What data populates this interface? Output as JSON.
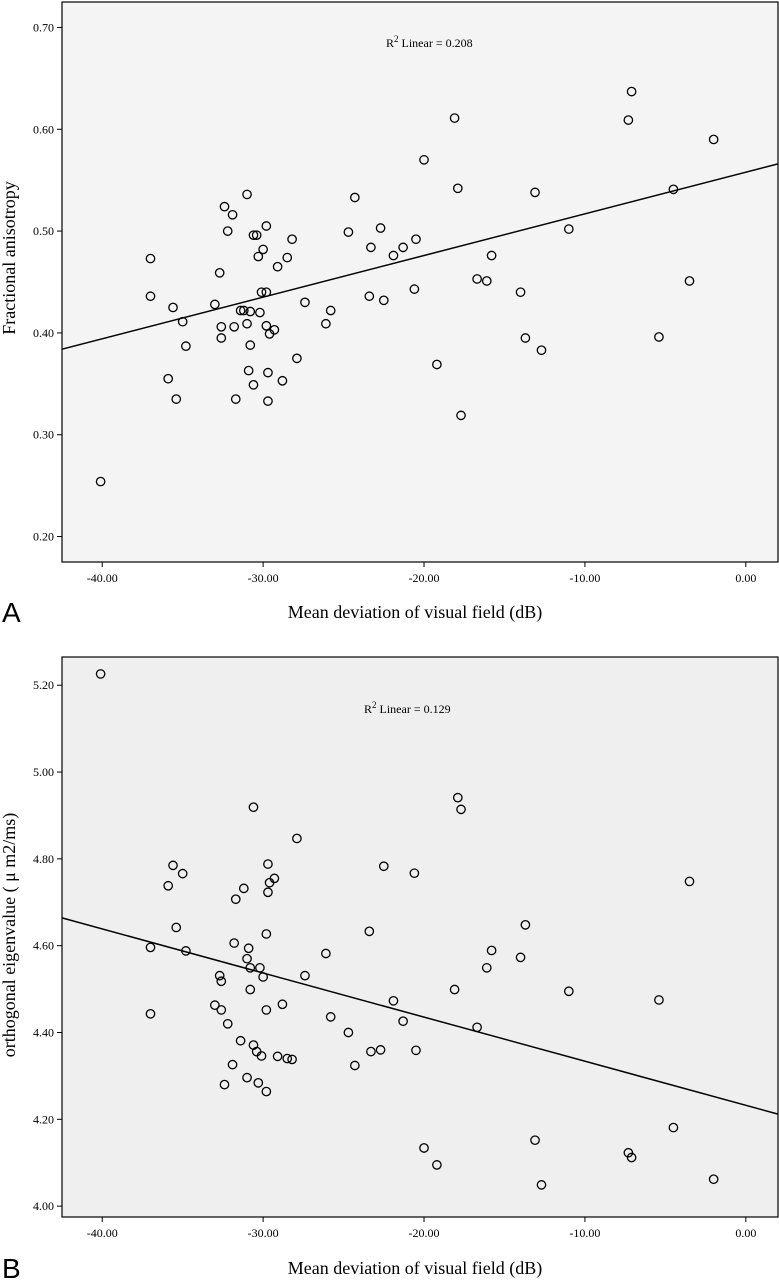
{
  "chart_data": [
    {
      "type": "scatter",
      "panel_label": "A",
      "xlabel": "Mean deviation of visual field (dB)",
      "ylabel": "Fractional anisotropy",
      "xlim": [
        -42.5,
        2.0
      ],
      "ylim": [
        0.175,
        0.725
      ],
      "x_ticks": [
        "-40.00",
        "-30.00",
        "-20.00",
        "-10.00",
        "0.00"
      ],
      "y_ticks": [
        "0.20",
        "0.30",
        "0.40",
        "0.50",
        "0.60",
        "0.70"
      ],
      "annotation_prefix": "R",
      "annotation_sup": "2",
      "annotation": " Linear = 0.208",
      "fit_line": {
        "x": [
          -42.5,
          2.0
        ],
        "y": [
          0.384,
          0.566
        ]
      },
      "background": "#f4f4f4",
      "points": [
        [
          -40.1,
          0.254
        ],
        [
          -37.0,
          0.473
        ],
        [
          -37.0,
          0.436
        ],
        [
          -35.9,
          0.355
        ],
        [
          -35.6,
          0.425
        ],
        [
          -35.4,
          0.335
        ],
        [
          -35.0,
          0.411
        ],
        [
          -34.8,
          0.387
        ],
        [
          -33.0,
          0.428
        ],
        [
          -32.7,
          0.459
        ],
        [
          -32.6,
          0.406
        ],
        [
          -32.6,
          0.395
        ],
        [
          -32.4,
          0.524
        ],
        [
          -32.2,
          0.5
        ],
        [
          -31.9,
          0.516
        ],
        [
          -31.8,
          0.406
        ],
        [
          -31.7,
          0.335
        ],
        [
          -31.4,
          0.422
        ],
        [
          -31.2,
          0.422
        ],
        [
          -31.0,
          0.536
        ],
        [
          -31.0,
          0.409
        ],
        [
          -30.9,
          0.363
        ],
        [
          -30.8,
          0.421
        ],
        [
          -30.8,
          0.388
        ],
        [
          -30.6,
          0.349
        ],
        [
          -30.6,
          0.496
        ],
        [
          -30.4,
          0.496
        ],
        [
          -30.3,
          0.475
        ],
        [
          -30.2,
          0.42
        ],
        [
          -30.1,
          0.44
        ],
        [
          -30.0,
          0.482
        ],
        [
          -29.8,
          0.505
        ],
        [
          -29.8,
          0.44
        ],
        [
          -29.8,
          0.407
        ],
        [
          -29.7,
          0.361
        ],
        [
          -29.7,
          0.333
        ],
        [
          -29.6,
          0.399
        ],
        [
          -29.3,
          0.403
        ],
        [
          -29.1,
          0.465
        ],
        [
          -28.8,
          0.353
        ],
        [
          -28.5,
          0.474
        ],
        [
          -28.2,
          0.492
        ],
        [
          -27.9,
          0.375
        ],
        [
          -27.4,
          0.43
        ],
        [
          -26.1,
          0.409
        ],
        [
          -25.8,
          0.422
        ],
        [
          -24.7,
          0.499
        ],
        [
          -24.3,
          0.533
        ],
        [
          -23.4,
          0.436
        ],
        [
          -23.3,
          0.484
        ],
        [
          -22.7,
          0.503
        ],
        [
          -22.5,
          0.432
        ],
        [
          -21.9,
          0.476
        ],
        [
          -21.3,
          0.484
        ],
        [
          -20.6,
          0.443
        ],
        [
          -20.5,
          0.492
        ],
        [
          -20.0,
          0.57
        ],
        [
          -19.2,
          0.369
        ],
        [
          -18.1,
          0.611
        ],
        [
          -17.9,
          0.542
        ],
        [
          -17.7,
          0.319
        ],
        [
          -16.7,
          0.453
        ],
        [
          -16.1,
          0.451
        ],
        [
          -15.8,
          0.476
        ],
        [
          -14.0,
          0.44
        ],
        [
          -13.7,
          0.395
        ],
        [
          -13.1,
          0.538
        ],
        [
          -12.7,
          0.383
        ],
        [
          -11.0,
          0.502
        ],
        [
          -7.3,
          0.609
        ],
        [
          -7.1,
          0.637
        ],
        [
          -5.4,
          0.396
        ],
        [
          -4.5,
          0.541
        ],
        [
          -3.5,
          0.451
        ],
        [
          -2.0,
          0.59
        ]
      ]
    },
    {
      "type": "scatter",
      "panel_label": "B",
      "xlabel": "Mean deviation of visual field (dB)",
      "ylabel": "orthogonal eigenvalue ( μ m2/ms)",
      "xlim": [
        -42.5,
        2.0
      ],
      "ylim": [
        3.975,
        5.265
      ],
      "x_ticks": [
        "-40.00",
        "-30.00",
        "-20.00",
        "-10.00",
        "0.00"
      ],
      "y_ticks": [
        "4.00",
        "4.20",
        "4.40",
        "4.60",
        "4.80",
        "5.00",
        "5.20"
      ],
      "annotation_prefix": "R",
      "annotation_sup": "2",
      "annotation": " Linear = 0.129",
      "fit_line": {
        "x": [
          -42.5,
          2.0
        ],
        "y": [
          4.664,
          4.212
        ]
      },
      "background": "#efefef",
      "points": [
        [
          -40.1,
          5.226
        ],
        [
          -37.0,
          4.596
        ],
        [
          -37.0,
          4.443
        ],
        [
          -35.9,
          4.738
        ],
        [
          -35.6,
          4.785
        ],
        [
          -35.4,
          4.642
        ],
        [
          -35.0,
          4.766
        ],
        [
          -34.8,
          4.588
        ],
        [
          -33.0,
          4.463
        ],
        [
          -32.7,
          4.531
        ],
        [
          -32.6,
          4.518
        ],
        [
          -32.6,
          4.452
        ],
        [
          -32.4,
          4.28
        ],
        [
          -32.2,
          4.42
        ],
        [
          -31.9,
          4.326
        ],
        [
          -31.8,
          4.606
        ],
        [
          -31.7,
          4.707
        ],
        [
          -31.4,
          4.381
        ],
        [
          -31.2,
          4.732
        ],
        [
          -31.0,
          4.296
        ],
        [
          -31.0,
          4.57
        ],
        [
          -30.9,
          4.594
        ],
        [
          -30.8,
          4.549
        ],
        [
          -30.8,
          4.499
        ],
        [
          -30.6,
          4.919
        ],
        [
          -30.6,
          4.371
        ],
        [
          -30.4,
          4.356
        ],
        [
          -30.3,
          4.284
        ],
        [
          -30.2,
          4.549
        ],
        [
          -30.1,
          4.346
        ],
        [
          -30.0,
          4.528
        ],
        [
          -29.8,
          4.627
        ],
        [
          -29.8,
          4.452
        ],
        [
          -29.8,
          4.264
        ],
        [
          -29.7,
          4.788
        ],
        [
          -29.7,
          4.723
        ],
        [
          -29.6,
          4.745
        ],
        [
          -29.3,
          4.755
        ],
        [
          -29.1,
          4.345
        ],
        [
          -28.8,
          4.465
        ],
        [
          -28.5,
          4.34
        ],
        [
          -28.2,
          4.338
        ],
        [
          -27.9,
          4.847
        ],
        [
          -27.4,
          4.531
        ],
        [
          -26.1,
          4.582
        ],
        [
          -25.8,
          4.436
        ],
        [
          -24.7,
          4.4
        ],
        [
          -24.3,
          4.324
        ],
        [
          -23.4,
          4.633
        ],
        [
          -23.3,
          4.356
        ],
        [
          -22.7,
          4.36
        ],
        [
          -22.5,
          4.783
        ],
        [
          -21.9,
          4.473
        ],
        [
          -21.3,
          4.426
        ],
        [
          -20.6,
          4.767
        ],
        [
          -20.5,
          4.359
        ],
        [
          -20.0,
          4.134
        ],
        [
          -19.2,
          4.095
        ],
        [
          -18.1,
          4.499
        ],
        [
          -17.9,
          4.941
        ],
        [
          -17.7,
          4.914
        ],
        [
          -16.7,
          4.412
        ],
        [
          -16.1,
          4.549
        ],
        [
          -15.8,
          4.589
        ],
        [
          -14.0,
          4.573
        ],
        [
          -13.7,
          4.648
        ],
        [
          -13.1,
          4.152
        ],
        [
          -12.7,
          4.049
        ],
        [
          -11.0,
          4.495
        ],
        [
          -7.3,
          4.123
        ],
        [
          -7.1,
          4.112
        ],
        [
          -5.4,
          4.475
        ],
        [
          -4.5,
          4.181
        ],
        [
          -3.5,
          4.748
        ],
        [
          -2.0,
          4.062
        ]
      ]
    }
  ]
}
